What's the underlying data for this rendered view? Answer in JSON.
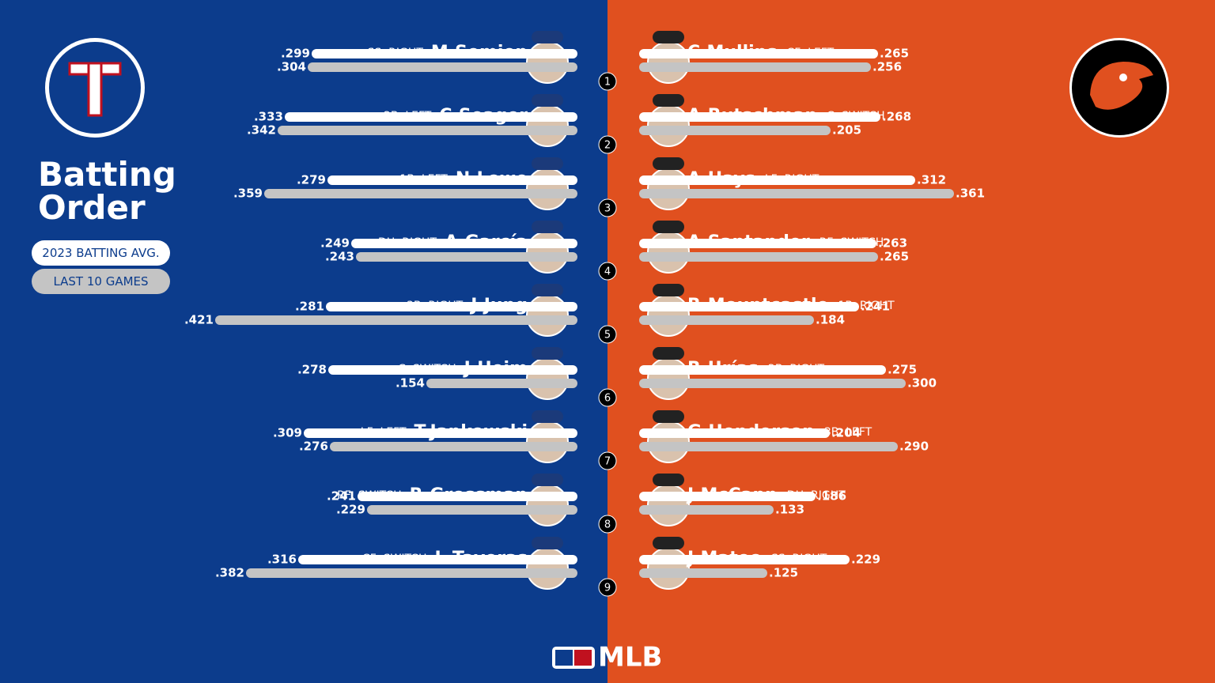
{
  "title": "Batting Order",
  "legend": [
    {
      "label": "2023 BATTING AVG.",
      "color": "#ffffff"
    },
    {
      "label": "LAST 10 GAMES",
      "color": "#c4c4c4"
    }
  ],
  "brand": "MLB",
  "orders": [
    "1",
    "2",
    "3",
    "4",
    "5",
    "6",
    "7",
    "8",
    "9"
  ],
  "teams": [
    {
      "color": "#0c3c8c",
      "players": [
        {
          "name": "M.Semien",
          "position": "SS, RIGHT",
          "avg_2023": {
            "value": 0.299,
            "label": ".299"
          },
          "avg_last10": {
            "value": 0.304,
            "label": ".304"
          }
        },
        {
          "name": "C.Seager",
          "position": "2B, LEFT",
          "avg_2023": {
            "value": 0.333,
            "label": ".333"
          },
          "avg_last10": {
            "value": 0.342,
            "label": ".342"
          }
        },
        {
          "name": "N.Lowe",
          "position": "1B, LEFT",
          "avg_2023": {
            "value": 0.279,
            "label": ".279"
          },
          "avg_last10": {
            "value": 0.359,
            "label": ".359"
          }
        },
        {
          "name": "A.García",
          "position": "DH, RIGHT",
          "avg_2023": {
            "value": 0.249,
            "label": ".249"
          },
          "avg_last10": {
            "value": 0.243,
            "label": ".243"
          }
        },
        {
          "name": "J.Jung",
          "position": "3B, RIGHT",
          "avg_2023": {
            "value": 0.281,
            "label": ".281"
          },
          "avg_last10": {
            "value": 0.421,
            "label": ".421"
          }
        },
        {
          "name": "J.Heim",
          "position": "C, SWITCH",
          "avg_2023": {
            "value": 0.278,
            "label": ".278"
          },
          "avg_last10": {
            "value": 0.154,
            "label": ".154"
          }
        },
        {
          "name": "T.Jankowski",
          "position": "LF, LEFT",
          "avg_2023": {
            "value": 0.309,
            "label": ".309"
          },
          "avg_last10": {
            "value": 0.276,
            "label": ".276"
          }
        },
        {
          "name": "R.Grossman",
          "position": "RF, SWITCH",
          "avg_2023": {
            "value": 0.241,
            "label": ".241"
          },
          "avg_last10": {
            "value": 0.229,
            "label": ".229"
          }
        },
        {
          "name": "L.Taveras",
          "position": "CF, SWITCH",
          "avg_2023": {
            "value": 0.316,
            "label": ".316"
          },
          "avg_last10": {
            "value": 0.382,
            "label": ".382"
          }
        }
      ]
    },
    {
      "color": "#e0501f",
      "players": [
        {
          "name": "C.Mullins",
          "position": "CF, LEFT",
          "avg_2023": {
            "value": 0.265,
            "label": ".265"
          },
          "avg_last10": {
            "value": 0.256,
            "label": ".256"
          }
        },
        {
          "name": "A.Rutschman",
          "position": "C, SWITCH",
          "avg_2023": {
            "value": 0.268,
            "label": ".268"
          },
          "avg_last10": {
            "value": 0.205,
            "label": ".205"
          }
        },
        {
          "name": "A.Hays",
          "position": "LF, RIGHT",
          "avg_2023": {
            "value": 0.312,
            "label": ".312"
          },
          "avg_last10": {
            "value": 0.361,
            "label": ".361"
          }
        },
        {
          "name": "A.Santander",
          "position": "RF, SWITCH",
          "avg_2023": {
            "value": 0.263,
            "label": ".263"
          },
          "avg_last10": {
            "value": 0.265,
            "label": ".265"
          }
        },
        {
          "name": "R.Mountcastle",
          "position": "1B, RIGHT",
          "avg_2023": {
            "value": 0.241,
            "label": ".241"
          },
          "avg_last10": {
            "value": 0.184,
            "label": ".184"
          }
        },
        {
          "name": "R.Urías",
          "position": "2B, RIGHT",
          "avg_2023": {
            "value": 0.275,
            "label": ".275"
          },
          "avg_last10": {
            "value": 0.3,
            "label": ".300"
          }
        },
        {
          "name": "G.Henderson",
          "position": "3B, LEFT",
          "avg_2023": {
            "value": 0.204,
            "label": ".204"
          },
          "avg_last10": {
            "value": 0.29,
            "label": ".290"
          }
        },
        {
          "name": "J.McCann",
          "position": "DH, RIGHT",
          "avg_2023": {
            "value": 0.186,
            "label": ".186"
          },
          "avg_last10": {
            "value": 0.133,
            "label": ".133"
          }
        },
        {
          "name": "J.Mateo",
          "position": "SS, RIGHT",
          "avg_2023": {
            "value": 0.229,
            "label": ".229"
          },
          "avg_last10": {
            "value": 0.125,
            "label": ".125"
          }
        }
      ]
    }
  ]
}
